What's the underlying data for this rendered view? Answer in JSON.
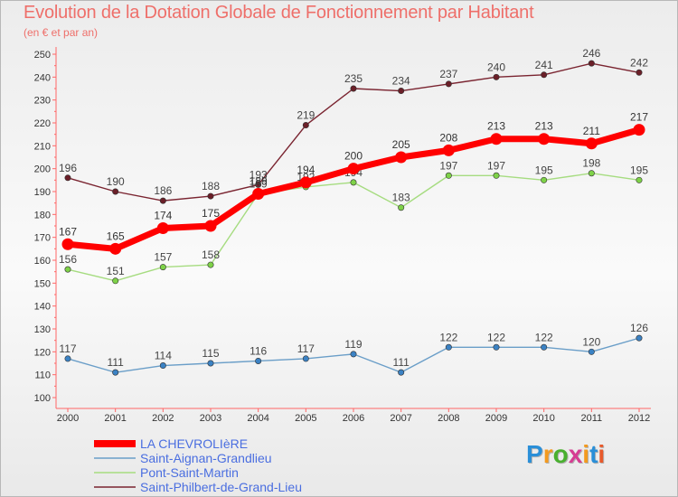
{
  "header": {
    "title": "Evolution de la Dotation Globale de Fonctionnement par Habitant",
    "subtitle": "(en € et par an)"
  },
  "logo": {
    "text": "Proxiti",
    "letters": [
      "P",
      "r",
      "o",
      "x",
      "i",
      "t",
      "i"
    ],
    "colors": [
      "#2a8fd8",
      "#f39a1f",
      "#49b02f",
      "#d63d93",
      "#f39a1f",
      "#2a8fd8",
      "#e85a2b"
    ]
  },
  "chart_data": {
    "type": "line",
    "title": "Evolution de la Dotation Globale de Fonctionnement par Habitant",
    "subtitle": "(en € et par an)",
    "xlabel": "",
    "ylabel": "",
    "x": [
      "2000",
      "2001",
      "2002",
      "2003",
      "2004",
      "2005",
      "2006",
      "2007",
      "2008",
      "2009",
      "2010",
      "2011",
      "2012"
    ],
    "ylim": [
      100,
      250
    ],
    "yticks": [
      100,
      110,
      120,
      130,
      140,
      150,
      160,
      170,
      180,
      190,
      200,
      210,
      220,
      230,
      240,
      250
    ],
    "grid": false,
    "legend_position": "bottom-left",
    "series": [
      {
        "name": "Saint-Philbert-de-Grand-Lieu",
        "color": "#7a2430",
        "marker": "#6b1f28",
        "values": [
          196,
          190,
          186,
          188,
          193,
          219,
          235,
          234,
          237,
          240,
          241,
          246,
          242
        ]
      },
      {
        "name": "Pont-Saint-Martin",
        "color": "#a6dc80",
        "marker": "#7ed248",
        "values": [
          156,
          151,
          157,
          158,
          189,
          192,
          194,
          183,
          197,
          197,
          195,
          198,
          195
        ]
      },
      {
        "name": "Saint-Aignan-Grandlieu",
        "color": "#6a9ec8",
        "marker": "#3b82c4",
        "values": [
          117,
          111,
          114,
          115,
          116,
          117,
          119,
          111,
          122,
          122,
          122,
          120,
          126
        ]
      },
      {
        "name": "LA CHEVROLIèRE",
        "color": "#ff0000",
        "marker": "#ff0000",
        "bold": true,
        "values": [
          167,
          165,
          174,
          175,
          189,
          194,
          200,
          205,
          208,
          213,
          213,
          211,
          217
        ]
      }
    ],
    "legend": [
      "LA CHEVROLIèRE",
      "Saint-Aignan-Grandlieu",
      "Pont-Saint-Martin",
      "Saint-Philbert-de-Grand-Lieu"
    ]
  }
}
